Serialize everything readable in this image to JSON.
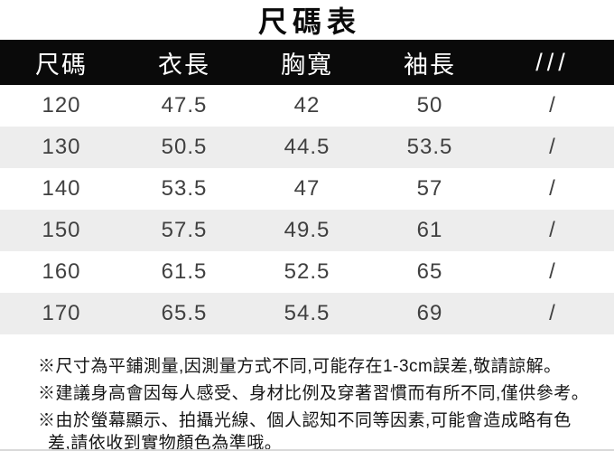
{
  "title": "尺碼表",
  "table": {
    "headers": [
      "尺碼",
      "衣長",
      "胸寬",
      "袖長",
      "///"
    ],
    "rows": [
      [
        "120",
        "47.5",
        "42",
        "50",
        "/"
      ],
      [
        "130",
        "50.5",
        "44.5",
        "53.5",
        "/"
      ],
      [
        "140",
        "53.5",
        "47",
        "57",
        "/"
      ],
      [
        "150",
        "57.5",
        "49.5",
        "61",
        "/"
      ],
      [
        "160",
        "61.5",
        "52.5",
        "65",
        "/"
      ],
      [
        "170",
        "65.5",
        "54.5",
        "69",
        "/"
      ]
    ]
  },
  "notes": {
    "note1": "※尺寸為平鋪測量,因測量方式不同,可能存在1-3cm誤差,敬請諒解。",
    "note2": "※建議身高會因每人感受、身材比例及穿著習慣而有所不同,僅供參考。",
    "note3_line1": "※由於螢幕顯示、拍攝光線、個人認知不同等因素,可能會造成略有色",
    "note3_line2": "差,請依收到實物顏色為準哦。"
  },
  "colors": {
    "header_bg": "#0a0a0a",
    "header_text": "#ffffff",
    "row_alt_bg": "#ededed",
    "cell_text": "#404040",
    "note_text": "#161616"
  },
  "chart_data": {
    "type": "table",
    "title": "尺碼表",
    "columns": [
      "尺碼",
      "衣長",
      "胸寬",
      "袖長",
      "///"
    ],
    "rows": [
      [
        "120",
        47.5,
        42,
        50,
        "/"
      ],
      [
        "130",
        50.5,
        44.5,
        53.5,
        "/"
      ],
      [
        "140",
        53.5,
        47,
        57,
        "/"
      ],
      [
        "150",
        57.5,
        49.5,
        61,
        "/"
      ],
      [
        "160",
        61.5,
        52.5,
        65,
        "/"
      ],
      [
        "170",
        65.5,
        54.5,
        69,
        "/"
      ]
    ],
    "notes": [
      "※尺寸為平鋪測量,因測量方式不同,可能存在1-3cm誤差,敬請諒解。",
      "※建議身高會因每人感受、身材比例及穿著習慣而有所不同,僅供參考。",
      "※由於螢幕顯示、拍攝光線、個人認知不同等因素,可能會造成略有色差,請依收到實物顏色為準哦。"
    ]
  }
}
